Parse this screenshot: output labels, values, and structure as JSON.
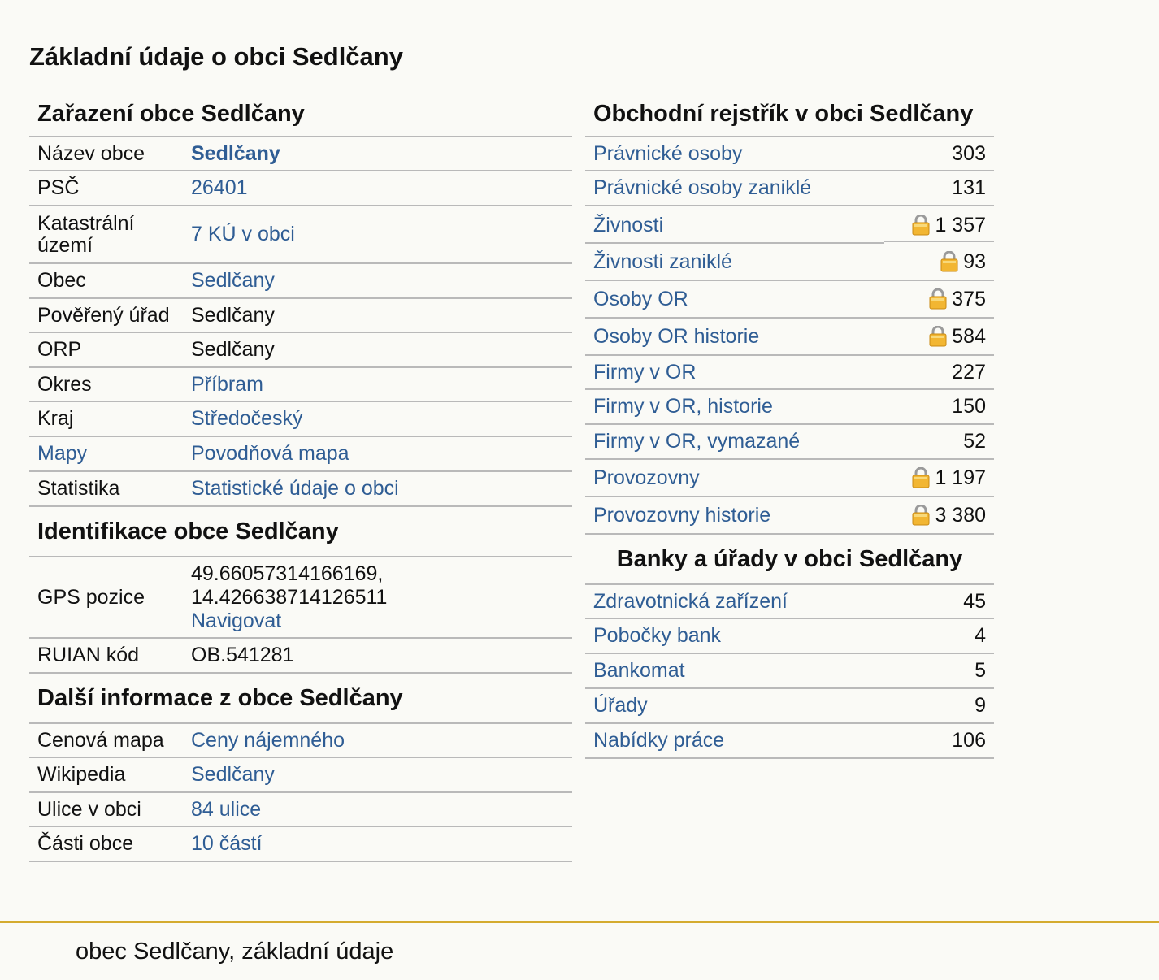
{
  "page_title": "Základní údaje o obci Sedlčany",
  "zarazeni": {
    "title": "Zařazení obce Sedlčany",
    "rows": [
      {
        "label": "Název obce",
        "value": "Sedlčany"
      },
      {
        "label": "PSČ",
        "value": "26401"
      },
      {
        "label": "Katastrální území",
        "value": "7 KÚ v obci"
      },
      {
        "label": "Obec",
        "value": "Sedlčany"
      },
      {
        "label": "Pověřený úřad",
        "value": "Sedlčany"
      },
      {
        "label": "ORP",
        "value": "Sedlčany"
      },
      {
        "label": "Okres",
        "value": "Příbram"
      },
      {
        "label": "Kraj",
        "value": "Středočeský"
      },
      {
        "label": "Mapy",
        "value": "Povodňová mapa"
      },
      {
        "label": "Statistika",
        "value": "Statistické údaje o obci"
      }
    ]
  },
  "identifikace": {
    "title": "Identifikace obce Sedlčany",
    "gps_label": "GPS pozice",
    "gps_value": "49.66057314166169, 14.426638714126511",
    "gps_link": "Navigovat",
    "ruian_label": "RUIAN kód",
    "ruian_value": "OB.541281"
  },
  "dalsi": {
    "title": "Další informace z obce Sedlčany",
    "rows": [
      {
        "label": "Cenová mapa",
        "value": "Ceny nájemného"
      },
      {
        "label": "Wikipedia",
        "value": "Sedlčany"
      },
      {
        "label": "Ulice v obci",
        "value": "84 ulice"
      },
      {
        "label": "Části obce",
        "value": "10 částí"
      }
    ]
  },
  "rejstrik": {
    "title": "Obchodní rejstřík v obci Sedlčany",
    "rows": [
      {
        "label": "Právnické osoby",
        "count": "303",
        "locked": false
      },
      {
        "label": "Právnické osoby zaniklé",
        "count": "131",
        "locked": false
      },
      {
        "label": "Živnosti",
        "count": "1 357",
        "locked": true
      },
      {
        "label": "Živnosti zaniklé",
        "count": "93",
        "locked": true
      },
      {
        "label": "Osoby OR",
        "count": "375",
        "locked": true
      },
      {
        "label": "Osoby OR historie",
        "count": "584",
        "locked": true
      },
      {
        "label": "Firmy v OR",
        "count": "227",
        "locked": false
      },
      {
        "label": "Firmy v OR, historie",
        "count": "150",
        "locked": false
      },
      {
        "label": "Firmy v OR, vymazané",
        "count": "52",
        "locked": false
      },
      {
        "label": "Provozovny",
        "count": "1 197",
        "locked": true
      },
      {
        "label": "Provozovny historie",
        "count": "3 380",
        "locked": true
      }
    ]
  },
  "banky": {
    "title": "Banky a úřady v obci Sedlčany",
    "rows": [
      {
        "label": "Zdravotnická zařízení",
        "count": "45"
      },
      {
        "label": "Pobočky bank",
        "count": "4"
      },
      {
        "label": "Bankomat",
        "count": "5"
      },
      {
        "label": "Úřady",
        "count": "9"
      },
      {
        "label": "Nabídky práce",
        "count": "106"
      }
    ]
  },
  "footer": {
    "text": "obec Sedlčany, základní údaje",
    "accent_color": "#d4ab2f"
  },
  "colors": {
    "link": "#2f5d94",
    "text": "#111111",
    "background": "#fafaf6"
  },
  "icons": {
    "lock": "padlock-icon"
  }
}
